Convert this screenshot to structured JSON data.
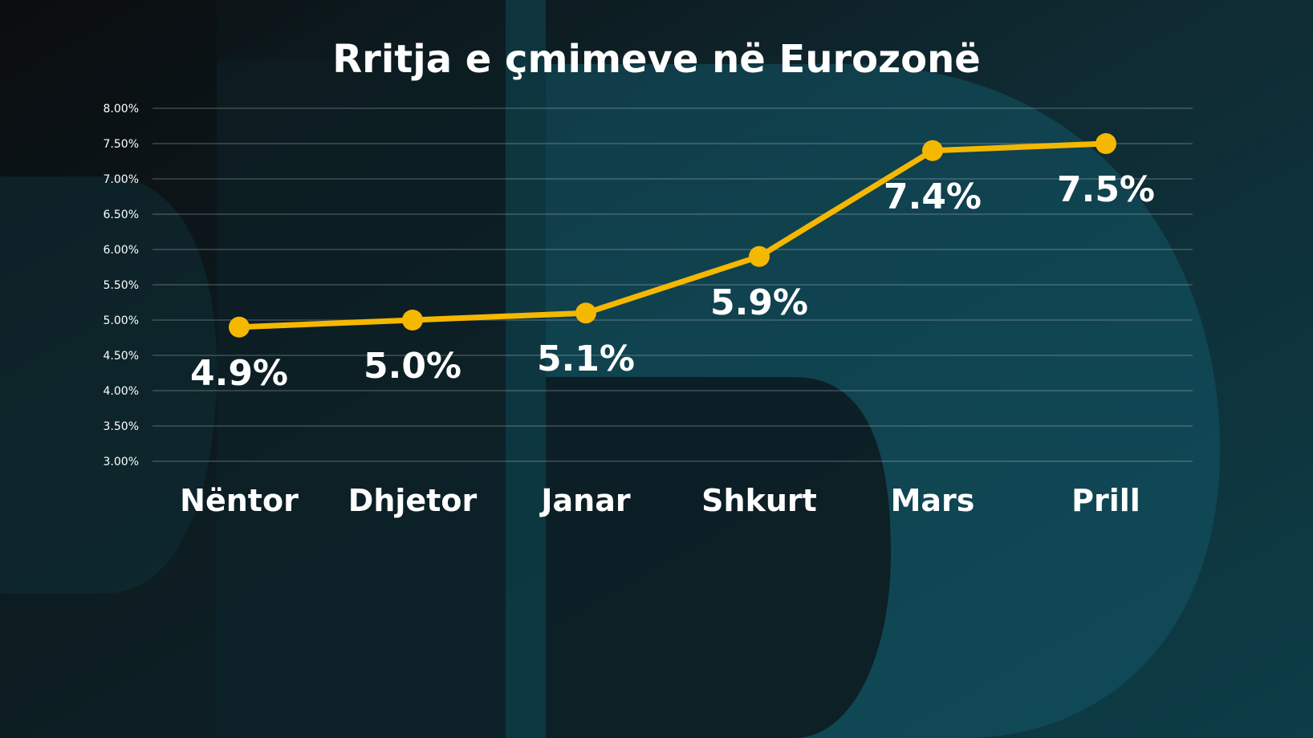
{
  "chart_data": {
    "type": "line",
    "title": "Rritja e çmimeve në Eurozonë",
    "categories": [
      "Nëntor",
      "Dhjetor",
      "Janar",
      "Shkurt",
      "Mars",
      "Prill"
    ],
    "values": [
      4.9,
      5.0,
      5.1,
      5.9,
      7.4,
      7.5
    ],
    "data_labels": [
      "4.9%",
      "5.0%",
      "5.1%",
      "5.9%",
      "7.4%",
      "7.5%"
    ],
    "ylim": [
      3.0,
      8.0
    ],
    "yticks": [
      3.0,
      3.5,
      4.0,
      4.5,
      5.0,
      5.5,
      6.0,
      6.5,
      7.0,
      7.5,
      8.0
    ],
    "ytick_labels": [
      "3.00%",
      "3.50%",
      "4.00%",
      "4.50%",
      "5.00%",
      "5.50%",
      "6.00%",
      "6.50%",
      "7.00%",
      "7.50%",
      "8.00%"
    ],
    "grid": true,
    "legend": "none",
    "line_color": "#f5b800",
    "xlabel": "",
    "ylabel": ""
  }
}
